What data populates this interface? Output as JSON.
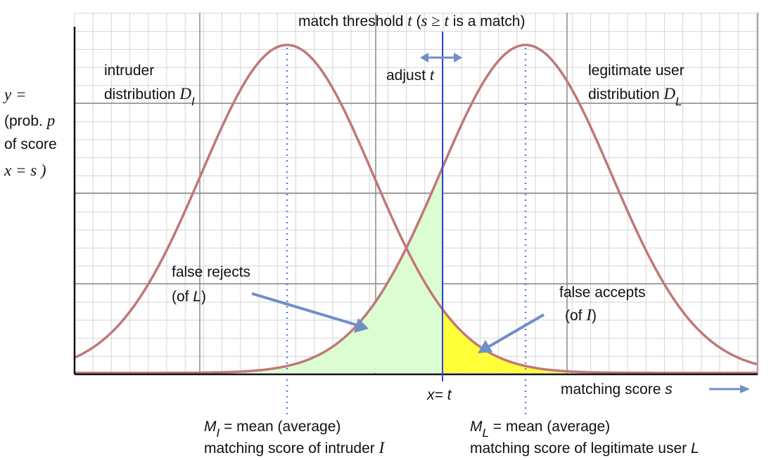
{
  "colors": {
    "curve": "#c07878",
    "threshold": "#2e46d6",
    "arrow": "#6f8fc8",
    "false_reject_fill": "#dcfcd2",
    "false_accept_fill": "#ffff3a",
    "grid_major": "#8a8a8a",
    "grid_minor": "#d4d4d4",
    "axis": "#111111",
    "mean_line": "#5b82e0"
  },
  "labels": {
    "title_part1": "match threshold ",
    "title_t": "t",
    "title_open": " (",
    "title_s": "s",
    "title_ge": " ≥ ",
    "title_t2": "t",
    "title_end": " is a match)",
    "adjust": "adjust ",
    "adjust_t": "t",
    "intruder_line1": "intruder",
    "intruder_line2": "distribution ",
    "intruder_D": "D",
    "intruder_sub": "I",
    "legit_line1": "legitimate user",
    "legit_line2": "distribution ",
    "legit_D": "D",
    "legit_sub": "L",
    "y_line1": "y =",
    "y_line2a": "(prob. ",
    "y_line2b": "p",
    "y_line3": "of score",
    "y_line4": "x = s )",
    "false_rejects_line1": "false rejects",
    "false_rejects_line2a": "(of ",
    "false_rejects_line2b": "L",
    "false_rejects_line2c": ")",
    "false_accepts_line1": "false accepts",
    "false_accepts_line2a": "(of ",
    "false_accepts_line2b": "I",
    "false_accepts_line2c": ")",
    "x_eq_t": "x= t",
    "matching_score": "matching score ",
    "matching_score_s": "s",
    "mi_M": "M",
    "mi_sub": "I",
    "mi_rest": " = mean (average)",
    "mi_line2": "matching score of intruder ",
    "mi_line2_I": "I",
    "ml_M": "M",
    "ml_sub": "L",
    "ml_rest": " = mean (average)",
    "ml_line2": "matching score of legitimate user ",
    "ml_line2_L": "L"
  }
}
